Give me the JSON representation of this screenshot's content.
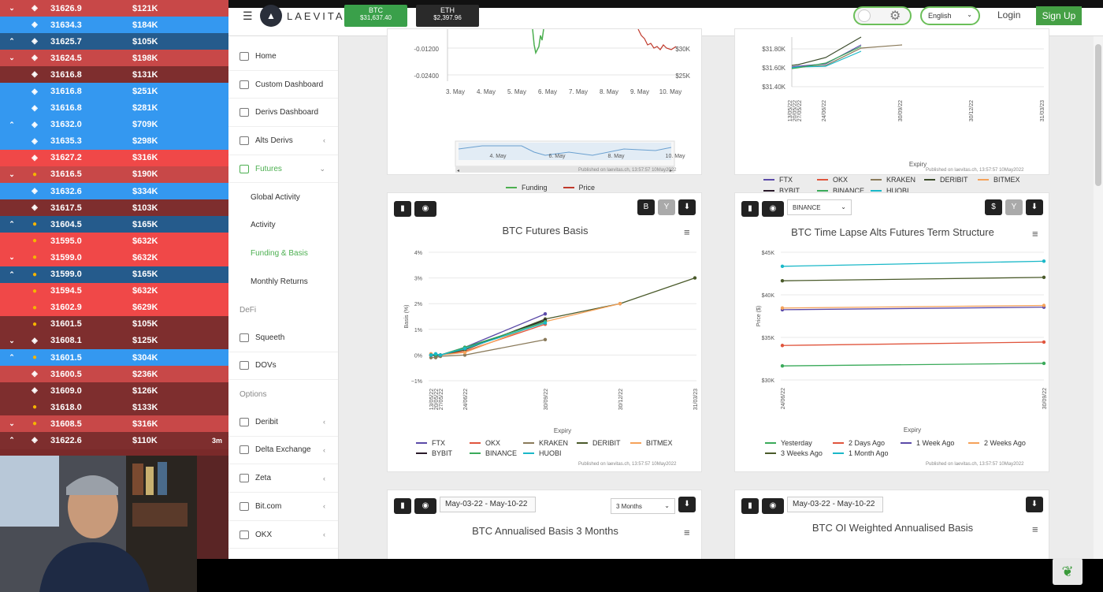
{
  "tape": [
    {
      "dir": "down",
      "icon": "diamond",
      "price": "31626.9",
      "size": "$121K",
      "cls": "red"
    },
    {
      "dir": "",
      "icon": "diamond",
      "price": "31634.3",
      "size": "$184K",
      "cls": "blue"
    },
    {
      "dir": "up",
      "icon": "diamond",
      "price": "31625.7",
      "size": "$105K",
      "cls": "dblue"
    },
    {
      "dir": "down",
      "icon": "diamond",
      "price": "31624.5",
      "size": "$198K",
      "cls": "red"
    },
    {
      "dir": "",
      "icon": "diamond",
      "price": "31616.8",
      "size": "$131K",
      "cls": "dred"
    },
    {
      "dir": "",
      "icon": "diamond",
      "price": "31616.8",
      "size": "$251K",
      "cls": "blue"
    },
    {
      "dir": "",
      "icon": "diamond",
      "price": "31616.8",
      "size": "$281K",
      "cls": "blue"
    },
    {
      "dir": "up",
      "icon": "diamond",
      "price": "31632.0",
      "size": "$709K",
      "cls": "blue"
    },
    {
      "dir": "",
      "icon": "diamond",
      "price": "31635.3",
      "size": "$298K",
      "cls": "blue"
    },
    {
      "dir": "",
      "icon": "diamond",
      "price": "31627.2",
      "size": "$316K",
      "cls": "bred"
    },
    {
      "dir": "down",
      "icon": "coin",
      "price": "31616.5",
      "size": "$190K",
      "cls": "red"
    },
    {
      "dir": "",
      "icon": "diamond",
      "price": "31632.6",
      "size": "$334K",
      "cls": "blue"
    },
    {
      "dir": "",
      "icon": "diamond",
      "price": "31617.5",
      "size": "$103K",
      "cls": "dred"
    },
    {
      "dir": "up",
      "icon": "coin",
      "price": "31604.5",
      "size": "$165K",
      "cls": "dblue"
    },
    {
      "dir": "",
      "icon": "coin",
      "price": "31595.0",
      "size": "$632K",
      "cls": "bred"
    },
    {
      "dir": "down",
      "icon": "coin",
      "price": "31599.0",
      "size": "$632K",
      "cls": "bred"
    },
    {
      "dir": "up",
      "icon": "coin",
      "price": "31599.0",
      "size": "$165K",
      "cls": "dblue"
    },
    {
      "dir": "",
      "icon": "coin",
      "price": "31594.5",
      "size": "$632K",
      "cls": "bred"
    },
    {
      "dir": "",
      "icon": "coin",
      "price": "31602.9",
      "size": "$629K",
      "cls": "bred"
    },
    {
      "dir": "",
      "icon": "coin",
      "price": "31601.5",
      "size": "$105K",
      "cls": "dred"
    },
    {
      "dir": "down",
      "icon": "diamond",
      "price": "31608.1",
      "size": "$125K",
      "cls": "dred"
    },
    {
      "dir": "up",
      "icon": "coin",
      "price": "31601.5",
      "size": "$304K",
      "cls": "blue"
    },
    {
      "dir": "",
      "icon": "diamond",
      "price": "31600.5",
      "size": "$236K",
      "cls": "red"
    },
    {
      "dir": "",
      "icon": "diamond",
      "price": "31609.0",
      "size": "$126K",
      "cls": "dred"
    },
    {
      "dir": "",
      "icon": "coin",
      "price": "31618.0",
      "size": "$133K",
      "cls": "dred"
    },
    {
      "dir": "down",
      "icon": "coin",
      "price": "31608.5",
      "size": "$316K",
      "cls": "red"
    },
    {
      "dir": "up",
      "icon": "diamond",
      "price": "31622.6",
      "size": "$110K",
      "cls": "dred"
    }
  ],
  "tape_badge": "3m",
  "header": {
    "brand": "LAEVITAS",
    "btc_label": "BTC",
    "btc_price": "$31,637.40",
    "eth_label": "ETH",
    "eth_price": "$2,397.96",
    "language": "English",
    "login": "Login",
    "signup": "Sign Up",
    "accent": "#45a045"
  },
  "sidebar": [
    {
      "label": "Home",
      "type": "item"
    },
    {
      "label": "Custom Dashboard",
      "type": "item"
    },
    {
      "label": "Derivs Dashboard",
      "type": "item"
    },
    {
      "label": "Alts Derivs",
      "type": "item",
      "chev": "‹"
    },
    {
      "label": "Futures",
      "type": "item",
      "chev": "⌄",
      "active": true
    },
    {
      "label": "Global Activity",
      "type": "sub"
    },
    {
      "label": "Activity",
      "type": "sub"
    },
    {
      "label": "Funding & Basis",
      "type": "sub",
      "active": true
    },
    {
      "label": "Monthly Returns",
      "type": "sub"
    },
    {
      "label": "DeFi",
      "type": "section"
    },
    {
      "label": "Squeeth",
      "type": "item"
    },
    {
      "label": "DOVs",
      "type": "item"
    },
    {
      "label": "Options",
      "type": "section"
    },
    {
      "label": "Deribit",
      "type": "item",
      "chev": "‹"
    },
    {
      "label": "Delta Exchange",
      "type": "item",
      "chev": "‹"
    },
    {
      "label": "Zeta",
      "type": "item",
      "chev": "‹"
    },
    {
      "label": "Bit.com",
      "type": "item",
      "chev": "‹"
    },
    {
      "label": "OKX",
      "type": "item",
      "chev": "‹"
    }
  ],
  "published": "Published on laevitas.ch, 13:57:57 10May2022",
  "funding_card": {
    "yticks": [
      "-0.01200",
      "-0.02400"
    ],
    "rticks": [
      "$30K",
      "$25K"
    ],
    "xticks": [
      "3. May",
      "4. May",
      "5. May",
      "6. May",
      "7. May",
      "8. May",
      "9. May",
      "10. May"
    ],
    "nav_ticks": [
      "4. May",
      "6. May",
      "8. May",
      "10. May"
    ],
    "legend": [
      {
        "name": "Funding",
        "color": "#4caf50"
      },
      {
        "name": "Price",
        "color": "#c0392b"
      }
    ]
  },
  "term_card": {
    "yticks": [
      "$31.80K",
      "$31.60K",
      "$31.40K"
    ],
    "xticks": [
      "13/05/22",
      "20/05/22",
      "27/05/22",
      "24/06/22",
      "30/09/22",
      "30/12/22",
      "31/03/23"
    ],
    "xlabel": "Expiry",
    "legend": [
      {
        "name": "FTX",
        "color": "#5b4aa8"
      },
      {
        "name": "OKX",
        "color": "#e0553d"
      },
      {
        "name": "KRAKEN",
        "color": "#8a7a5a"
      },
      {
        "name": "DERIBIT",
        "color": "#3a4a2a"
      },
      {
        "name": "BITMEX",
        "color": "#f5a25a"
      },
      {
        "name": "BYBIT",
        "color": "#2a1a2a"
      },
      {
        "name": "BINANCE",
        "color": "#3aaa5a"
      },
      {
        "name": "HUOBI",
        "color": "#1ab8c8"
      }
    ]
  },
  "basis_card": {
    "buttons": [
      "B",
      "Y"
    ],
    "chart_data": {
      "type": "line",
      "title": "BTC Futures Basis",
      "xlabel": "Expiry",
      "ylabel": "Basis (%)",
      "categories": [
        "13/05/22",
        "20/05/22",
        "27/05/22",
        "24/06/22",
        "30/09/22",
        "30/12/22",
        "31/03/23"
      ],
      "ylim": [
        -1,
        4
      ],
      "yticks": [
        "4%",
        "3%",
        "2%",
        "1%",
        "0%",
        "−1%"
      ],
      "series": [
        {
          "name": "FTX",
          "color": "#5b4aa8",
          "values": [
            0.0,
            -0.05,
            0.0,
            0.3,
            1.6,
            null,
            null
          ]
        },
        {
          "name": "OKX",
          "color": "#e0553d",
          "values": [
            0.0,
            0.0,
            0.0,
            0.15,
            1.2,
            null,
            null
          ]
        },
        {
          "name": "KRAKEN",
          "color": "#8a7a5a",
          "values": [
            -0.1,
            -0.1,
            -0.05,
            0.0,
            0.6,
            null,
            null
          ]
        },
        {
          "name": "DERIBIT",
          "color": "#4a5a2a",
          "values": [
            0.0,
            0.0,
            0.0,
            0.2,
            1.4,
            2.0,
            3.0
          ]
        },
        {
          "name": "BITMEX",
          "color": "#f5a25a",
          "values": [
            0.05,
            0.0,
            0.0,
            0.1,
            1.3,
            2.0,
            null
          ]
        },
        {
          "name": "BYBIT",
          "color": "#2a1a2a",
          "values": [
            0.0,
            0.0,
            0.0,
            0.25,
            1.35,
            null,
            null
          ]
        },
        {
          "name": "BINANCE",
          "color": "#3aaa5a",
          "values": [
            0.0,
            0.0,
            0.0,
            0.3,
            1.3,
            null,
            null
          ]
        },
        {
          "name": "HUOBI",
          "color": "#1ab8c8",
          "values": [
            0.0,
            0.05,
            0.0,
            0.25,
            1.25,
            null,
            null
          ]
        }
      ]
    }
  },
  "timelapse_card": {
    "select": "BINANCE",
    "buttons": [
      "$",
      "Y"
    ],
    "chart_data": {
      "type": "line",
      "title": "BTC Time Lapse Alts Futures Term Structure",
      "xlabel": "Expiry",
      "ylabel": "Price ($)",
      "categories": [
        "24/06/22",
        "30/09/22"
      ],
      "ylim": [
        30000,
        45000
      ],
      "yticks": [
        "$45K",
        "$40K",
        "$35K",
        "$30K"
      ],
      "series": [
        {
          "name": "Yesterday",
          "color": "#3aaa5a",
          "values": [
            31650,
            31950
          ]
        },
        {
          "name": "2 Days Ago",
          "color": "#e0553d",
          "values": [
            34050,
            34450
          ]
        },
        {
          "name": "1 Week Ago",
          "color": "#5b4aa8",
          "values": [
            38250,
            38550
          ]
        },
        {
          "name": "2 Weeks Ago",
          "color": "#f5a25a",
          "values": [
            38450,
            38750
          ]
        },
        {
          "name": "3 Weeks Ago",
          "color": "#4a5a2a",
          "values": [
            41650,
            42050
          ]
        },
        {
          "name": "1 Month Ago",
          "color": "#1ab8c8",
          "values": [
            43350,
            43950
          ]
        }
      ]
    }
  },
  "ann_card": {
    "date_range": "May-03-22 - May-10-22",
    "select": "3 Months",
    "title": "BTC Annualised Basis 3 Months"
  },
  "oi_card": {
    "date_range": "May-03-22 - May-10-22",
    "title": "BTC OI Weighted Annualised Basis"
  }
}
